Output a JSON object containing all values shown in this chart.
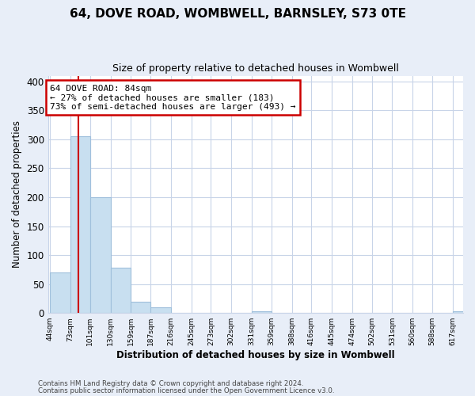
{
  "title": "64, DOVE ROAD, WOMBWELL, BARNSLEY, S73 0TE",
  "subtitle": "Size of property relative to detached houses in Wombwell",
  "xlabel": "Distribution of detached houses by size in Wombwell",
  "ylabel": "Number of detached properties",
  "bar_edges": [
    44,
    73,
    101,
    130,
    159,
    187,
    216,
    245,
    273,
    302,
    331,
    359,
    388,
    416,
    445,
    474,
    502,
    531,
    560,
    588,
    617
  ],
  "bar_heights": [
    70,
    305,
    200,
    78,
    20,
    10,
    0,
    0,
    0,
    0,
    3,
    0,
    0,
    0,
    0,
    0,
    0,
    0,
    0,
    0,
    3
  ],
  "bar_color": "#c8dff0",
  "bar_edge_color": "#a0c0dc",
  "property_line_x": 84,
  "property_line_color": "#cc0000",
  "ylim": [
    0,
    410
  ],
  "yticks": [
    0,
    50,
    100,
    150,
    200,
    250,
    300,
    350,
    400
  ],
  "annotation_title": "64 DOVE ROAD: 84sqm",
  "annotation_line1": "← 27% of detached houses are smaller (183)",
  "annotation_line2": "73% of semi-detached houses are larger (493) →",
  "footnote1": "Contains HM Land Registry data © Crown copyright and database right 2024.",
  "footnote2": "Contains public sector information licensed under the Open Government Licence v3.0.",
  "bg_color": "#e8eef8",
  "plot_bg_color": "#ffffff",
  "grid_color": "#c8d4e8"
}
